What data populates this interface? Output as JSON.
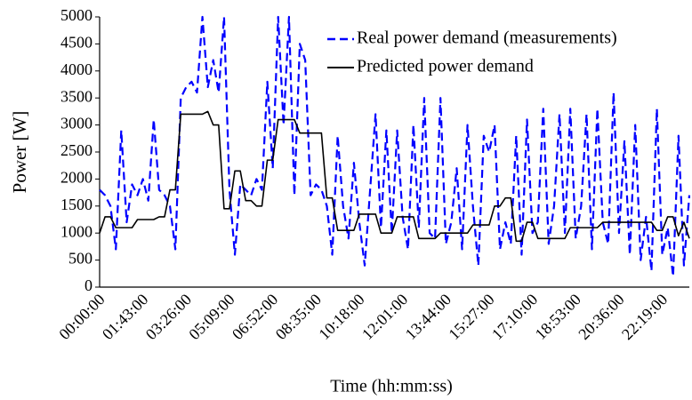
{
  "chart_data": {
    "type": "line",
    "x_label": "Time (hh:mm:ss)",
    "y_label": "Power [W]",
    "categories": [
      "00:00:00",
      null,
      null,
      null,
      null,
      null,
      null,
      null,
      "01:43:00",
      null,
      null,
      null,
      null,
      null,
      null,
      null,
      "03:26:00",
      null,
      null,
      null,
      null,
      null,
      null,
      null,
      "05:09:00",
      null,
      null,
      null,
      null,
      null,
      null,
      null,
      "06:52:00",
      null,
      null,
      null,
      null,
      null,
      null,
      null,
      "08:35:00",
      null,
      null,
      null,
      null,
      null,
      null,
      null,
      "10:18:00",
      null,
      null,
      null,
      null,
      null,
      null,
      null,
      "12:01:00",
      null,
      null,
      null,
      null,
      null,
      null,
      null,
      "13:44:00",
      null,
      null,
      null,
      null,
      null,
      null,
      null,
      "15:27:00",
      null,
      null,
      null,
      null,
      null,
      null,
      null,
      "17:10:00",
      null,
      null,
      null,
      null,
      null,
      null,
      null,
      "18:53:00",
      null,
      null,
      null,
      null,
      null,
      null,
      null,
      "20:36:00",
      null,
      null,
      null,
      null,
      null,
      null,
      null,
      "22:19:00",
      null,
      null,
      null,
      null,
      null
    ],
    "series": [
      {
        "name": "Real power demand (measurements)",
        "color": "#0000ff",
        "dashed": true,
        "values": [
          1800,
          1700,
          1500,
          700,
          2900,
          1200,
          1900,
          1700,
          2000,
          1600,
          3100,
          1800,
          1700,
          1500,
          700,
          3500,
          3700,
          3800,
          3600,
          5000,
          3700,
          4200,
          3600,
          5000,
          1800,
          600,
          1900,
          1800,
          1700,
          2000,
          1800,
          3800,
          2200,
          5000,
          3000,
          5000,
          1700,
          4500,
          4200,
          1700,
          1900,
          1800,
          1500,
          600,
          2800,
          1500,
          900,
          2300,
          1200,
          400,
          1800,
          3200,
          1100,
          2900,
          1000,
          2900,
          1300,
          700,
          3000,
          1100,
          3500,
          1000,
          900,
          3500,
          800,
          1200,
          2200,
          700,
          3000,
          1500,
          400,
          2800,
          2500,
          3000,
          700,
          1200,
          800,
          2800,
          600,
          3100,
          1000,
          1200,
          3300,
          800,
          1500,
          3200,
          1000,
          3300,
          900,
          1500,
          3200,
          700,
          3300,
          1200,
          800,
          3600,
          1000,
          2700,
          600,
          3000,
          500,
          1300,
          300,
          3300,
          600,
          1100,
          200,
          2800,
          400,
          1700
        ]
      },
      {
        "name": "Predicted power demand",
        "color": "#000000",
        "dashed": false,
        "values": [
          1000,
          1300,
          1300,
          1100,
          1100,
          1100,
          1100,
          1250,
          1250,
          1250,
          1250,
          1300,
          1300,
          1800,
          1800,
          3200,
          3200,
          3200,
          3200,
          3200,
          3250,
          3000,
          3000,
          1450,
          1450,
          2150,
          2150,
          1600,
          1600,
          1500,
          1500,
          2350,
          2350,
          3100,
          3100,
          3100,
          3100,
          2850,
          2850,
          2850,
          2850,
          2850,
          1650,
          1650,
          1050,
          1050,
          1050,
          1050,
          1350,
          1350,
          1350,
          1350,
          1000,
          1000,
          1000,
          1300,
          1300,
          1300,
          1300,
          900,
          900,
          900,
          900,
          1000,
          1000,
          1000,
          1000,
          1000,
          1000,
          1150,
          1150,
          1150,
          1150,
          1500,
          1500,
          1650,
          1650,
          850,
          850,
          1200,
          1200,
          900,
          900,
          900,
          900,
          900,
          900,
          1100,
          1100,
          1100,
          1100,
          1100,
          1100,
          1200,
          1200,
          1200,
          1200,
          1200,
          1200,
          1200,
          1200,
          1200,
          1200,
          1050,
          1050,
          1300,
          1300,
          950,
          1200,
          900
        ]
      }
    ],
    "ylim": [
      0,
      5000
    ],
    "yticks": [
      0,
      500,
      1000,
      1500,
      2000,
      2500,
      3000,
      3500,
      4000,
      4500,
      5000
    ],
    "grid": false,
    "legend": "upper right"
  }
}
